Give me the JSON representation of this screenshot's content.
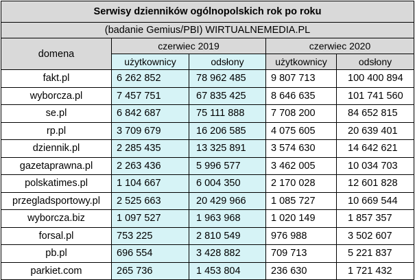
{
  "table": {
    "title": "Serwisy dzienników ogólnopolskich rok po roku",
    "subtitle": "(badanie Gemius/PBI) WIRTUALNEMEDIA.PL",
    "domain_header": "domena",
    "periods": [
      "czerwiec 2019",
      "czerwiec 2020"
    ],
    "columns": [
      "użytkownicy",
      "odsłony",
      "użytkownicy",
      "odsłony"
    ],
    "rows": [
      [
        "fakt.pl",
        "6 262 852",
        "78 962 485",
        "9 807 713",
        "100 400 894"
      ],
      [
        "wyborcza.pl",
        "7 457 751",
        "67 835 425",
        "8 646 635",
        "101 741 560"
      ],
      [
        "se.pl",
        "6 842 687",
        "75 111 888",
        "7 708 200",
        "84 652 815"
      ],
      [
        "rp.pl",
        "3 709 679",
        "16 206 585",
        "4 075 605",
        "20 639 401"
      ],
      [
        "dziennik.pl",
        "2 285 435",
        "13 325 891",
        "3 574 630",
        "14 642 621"
      ],
      [
        "gazetaprawna.pl",
        "2 263 436",
        "5 996 577",
        "3 462 005",
        "10 034 703"
      ],
      [
        "polskatimes.pl",
        "1 104 667",
        "6 004 350",
        "2 170 028",
        "12 601 828"
      ],
      [
        "przegladsportowy.pl",
        "2 525 663",
        "20 429 966",
        "1 085 727",
        "10 669 544"
      ],
      [
        "wyborcza.biz",
        "1 097 527",
        "1 963 968",
        "1 020 149",
        "1 857 357"
      ],
      [
        "forsal.pl",
        "753 225",
        "2 810 549",
        "976 988",
        "3 502 607"
      ],
      [
        "pb.pl",
        "696 554",
        "3 428 882",
        "709 713",
        "5 221 837"
      ],
      [
        "parkiet.com",
        "265 736",
        "1 453 804",
        "236 630",
        "1 721 432"
      ]
    ],
    "colors": {
      "header_bg": "#d9d9d9",
      "highlight_2019": "#d6f3f6",
      "border": "#000000"
    }
  }
}
